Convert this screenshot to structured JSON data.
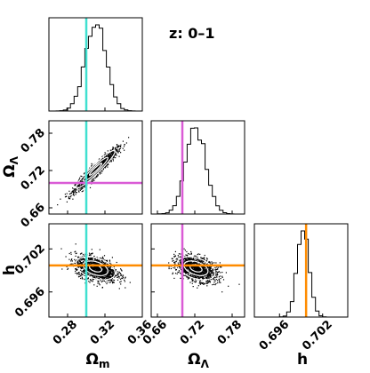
{
  "title": "z: 0–1",
  "colors": {
    "omega_m_line": "#40e0d0",
    "omega_lambda_line": "#da5bd6",
    "h_line": "#ff8c00",
    "points": "#000000",
    "contour": "#ffffff",
    "hist": "#000000"
  },
  "chart_data": {
    "type": "corner",
    "title": "z: 0–1",
    "parameters": [
      {
        "key": "om",
        "label": "Ω",
        "sub": "m",
        "range": [
          0.26,
          0.36
        ],
        "ticks": [
          "0.28",
          "0.32",
          "0.36"
        ],
        "tick_values": [
          0.28,
          0.32,
          0.36
        ],
        "truth": 0.3,
        "mean": 0.31,
        "sigma": 0.011
      },
      {
        "key": "ol",
        "label": "Ω",
        "sub": "Λ",
        "range": [
          0.65,
          0.8
        ],
        "ticks": [
          "0.66",
          "0.72",
          "0.78"
        ],
        "tick_values": [
          0.66,
          0.72,
          0.78
        ],
        "truth": 0.7,
        "mean": 0.722,
        "sigma": 0.016
      },
      {
        "key": "h",
        "label": "h",
        "sub": "",
        "range": [
          0.6925,
          0.7055
        ],
        "ticks": [
          "0.696",
          "0.702"
        ],
        "tick_values": [
          0.696,
          0.702
        ],
        "truth": 0.6997,
        "mean": 0.6993,
        "sigma": 0.00085
      }
    ],
    "correlations": {
      "om_ol": 0.95,
      "om_h": -0.4,
      "ol_h": -0.4
    },
    "grid": false
  }
}
